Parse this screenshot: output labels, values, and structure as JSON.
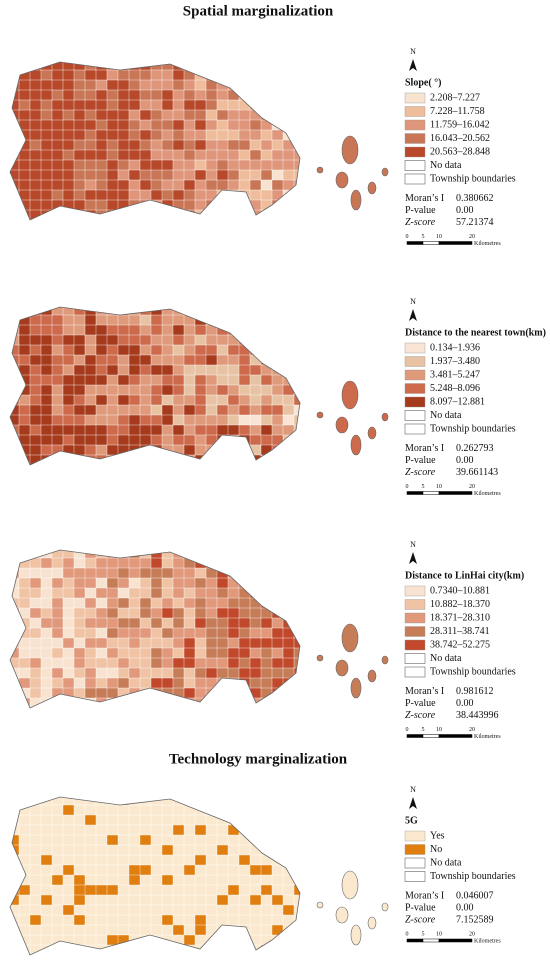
{
  "sections": [
    {
      "title": "Spatial marginalization"
    },
    {
      "title": "Technology marginalization"
    }
  ],
  "panels": [
    {
      "north": "N",
      "legend_title": "Slope( °)",
      "items": [
        {
          "label": "2.208–7.227",
          "color": "#f8e3d0"
        },
        {
          "label": "7.228–11.758",
          "color": "#efbc9c"
        },
        {
          "label": "11.759–16.042",
          "color": "#e0967a"
        },
        {
          "label": "16.043–20.562",
          "color": "#c97656"
        },
        {
          "label": "20.563–28.848",
          "color": "#b8482a"
        }
      ],
      "no_data": "No data",
      "boundaries": "Township boundaries",
      "stats": [
        {
          "label": "Moran’s I",
          "value": "0.380662"
        },
        {
          "label": "P-value",
          "value": "0.00"
        },
        {
          "label": "Z-score",
          "value": "57.21374"
        }
      ],
      "scale": {
        "ticks": [
          "0",
          "5",
          "10",
          "20"
        ],
        "unit": "Kilometres"
      }
    },
    {
      "north": "N",
      "legend_title": "Distance to the nearest town(km)",
      "items": [
        {
          "label": "0.134–1.936",
          "color": "#f9e4d6"
        },
        {
          "label": "1.937–3.480",
          "color": "#e8c3a3"
        },
        {
          "label": "3.481–5.247",
          "color": "#df9a7b"
        },
        {
          "label": "5.248–8.096",
          "color": "#cd6a4c"
        },
        {
          "label": "8.097–12.881",
          "color": "#a63a1c"
        }
      ],
      "no_data": "No data",
      "boundaries": "Township boundaries",
      "stats": [
        {
          "label": "Moran’s I",
          "value": "0.262793"
        },
        {
          "label": "P-value",
          "value": "0.00"
        },
        {
          "label": "Z-score",
          "value": "39.661143"
        }
      ],
      "scale": {
        "ticks": [
          "0",
          "5",
          "10",
          "20"
        ],
        "unit": "Kilometres"
      }
    },
    {
      "north": "N",
      "legend_title": "Distance to LinHai city(km)",
      "items": [
        {
          "label": "0.7340–10.881",
          "color": "#f8e3d0"
        },
        {
          "label": "10.882–18.370",
          "color": "#f0c3a5"
        },
        {
          "label": "18.371–28.310",
          "color": "#e1987b"
        },
        {
          "label": "28.311–38.741",
          "color": "#c77c58"
        },
        {
          "label": "38.742–52.275",
          "color": "#c1482a"
        }
      ],
      "no_data": "No data",
      "boundaries": "Township boundaries",
      "stats": [
        {
          "label": "Moran’s I",
          "value": "0.981612"
        },
        {
          "label": "P-value",
          "value": "0.00"
        },
        {
          "label": "Z-score",
          "value": "38.443996"
        }
      ],
      "scale": {
        "ticks": [
          "0",
          "5",
          "10",
          "20"
        ],
        "unit": "Kilometres"
      }
    },
    {
      "north": "N",
      "legend_title": "5G",
      "items": [
        {
          "label": "Yes",
          "color": "#fbe9cf"
        },
        {
          "label": "No",
          "color": "#e07f10"
        }
      ],
      "no_data": "No data",
      "boundaries": "Township boundaries",
      "stats": [
        {
          "label": "Moran’s I",
          "value": "0.046007"
        },
        {
          "label": "P-value",
          "value": "0.00"
        },
        {
          "label": "Z-score",
          "value": "7.152589"
        }
      ],
      "scale": {
        "ticks": [
          "0",
          "5",
          "10",
          "20"
        ],
        "unit": "Kilometres"
      }
    }
  ]
}
